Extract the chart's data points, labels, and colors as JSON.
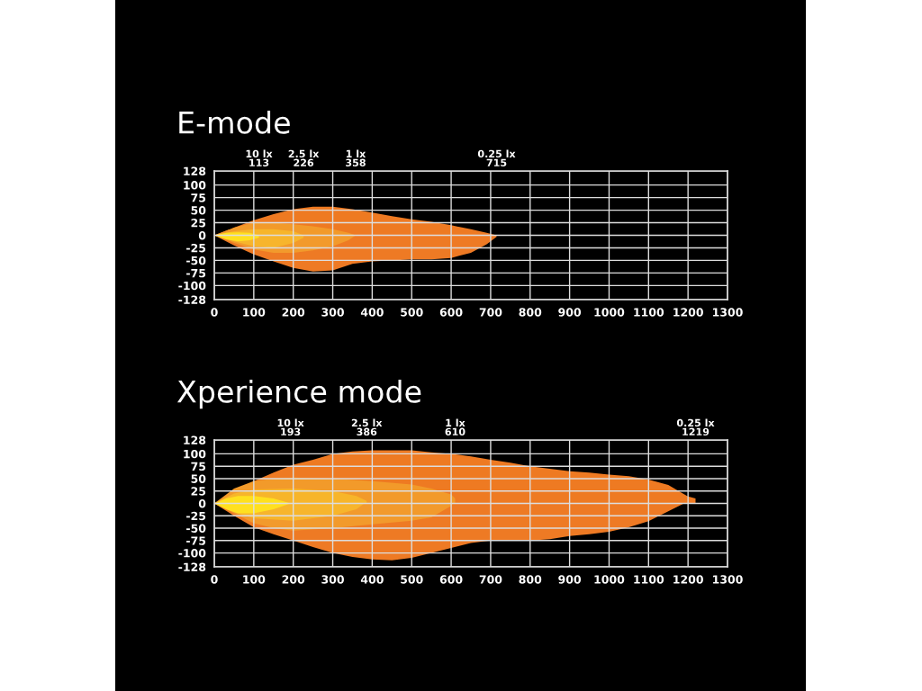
{
  "chart_data": [
    {
      "type": "area",
      "title": "E-mode",
      "xlim": [
        0,
        1300
      ],
      "xticks": [
        0,
        100,
        200,
        300,
        400,
        500,
        600,
        700,
        800,
        900,
        1000,
        1100,
        1200,
        1300
      ],
      "ylim": [
        -128,
        128
      ],
      "yticks": [
        128,
        100,
        75,
        50,
        25,
        0,
        -25,
        -50,
        -75,
        -100,
        -128
      ],
      "grid": true,
      "annotations": [
        "10 lx\n113",
        "2.5 lx\n226",
        "1 lx\n358",
        "0.25 lx\n715"
      ],
      "series": [
        {
          "color": "#ee7a22",
          "x": [
            0,
            50,
            100,
            150,
            200,
            250,
            300,
            350,
            400,
            450,
            500,
            550,
            600,
            650,
            690,
            715
          ],
          "values": [
            0,
            15,
            30,
            42,
            52,
            57,
            57,
            52,
            45,
            38,
            32,
            27,
            20,
            12,
            5,
            0
          ]
        },
        {
          "color": "#f29a2a",
          "x": [
            0,
            50,
            100,
            150,
            200,
            250,
            300,
            340,
            358
          ],
          "values": [
            0,
            15,
            25,
            25,
            22,
            18,
            12,
            5,
            0
          ]
        },
        {
          "color": "#f7b52a",
          "x": [
            0,
            50,
            100,
            150,
            200,
            226
          ],
          "values": [
            0,
            8,
            12,
            12,
            8,
            0
          ]
        },
        {
          "color": "#ffe01e",
          "x": [
            0,
            30,
            60,
            90,
            113
          ],
          "values": [
            0,
            5,
            6,
            5,
            0
          ]
        },
        {
          "color": "#ee7a24",
          "x": [
            0,
            50,
            100,
            150,
            200,
            250,
            300,
            350,
            400,
            450,
            500,
            550,
            600,
            650,
            690,
            715
          ],
          "values": [
            0,
            -20,
            -38,
            -52,
            -65,
            -72,
            -70,
            -57,
            -52,
            -50,
            -48,
            -48,
            -45,
            -35,
            -18,
            -3
          ]
        },
        {
          "color": "#f29a2c",
          "x": [
            0,
            50,
            100,
            150,
            200,
            250,
            300,
            340,
            358
          ],
          "values": [
            0,
            -15,
            -28,
            -35,
            -35,
            -30,
            -22,
            -10,
            0
          ]
        },
        {
          "color": "#f7b52c",
          "x": [
            0,
            50,
            100,
            150,
            200,
            226
          ],
          "values": [
            0,
            -12,
            -22,
            -25,
            -15,
            -5
          ]
        },
        {
          "color": "#ffe020",
          "x": [
            0,
            30,
            60,
            90,
            113
          ],
          "values": [
            0,
            -8,
            -12,
            -10,
            -5
          ]
        }
      ]
    },
    {
      "type": "area",
      "title": "Xperience mode",
      "xlim": [
        0,
        1300
      ],
      "xticks": [
        0,
        100,
        200,
        300,
        400,
        500,
        600,
        700,
        800,
        900,
        1000,
        1100,
        1200,
        1300
      ],
      "ylim": [
        -128,
        128
      ],
      "yticks": [
        128,
        100,
        75,
        50,
        25,
        0,
        -25,
        -50,
        -75,
        -100,
        -128
      ],
      "grid": true,
      "annotations": [
        "10 lx\n193",
        "2.5 lx\n386",
        "1 lx\n610",
        "0.25 lx\n1219"
      ],
      "series": [
        {
          "color": "#ee7a22",
          "x": [
            0,
            50,
            100,
            150,
            200,
            250,
            300,
            350,
            400,
            450,
            500,
            550,
            600,
            650,
            700,
            750,
            800,
            850,
            900,
            950,
            1000,
            1050,
            1100,
            1150,
            1200,
            1219
          ],
          "values": [
            0,
            25,
            45,
            62,
            78,
            88,
            100,
            105,
            107,
            107,
            107,
            103,
            100,
            95,
            88,
            82,
            75,
            70,
            65,
            62,
            58,
            55,
            48,
            37,
            14,
            10
          ]
        },
        {
          "color": "#f29a2a",
          "x": [
            0,
            50,
            100,
            150,
            200,
            300,
            400,
            500,
            550,
            600,
            610
          ],
          "values": [
            0,
            30,
            45,
            50,
            52,
            50,
            45,
            38,
            30,
            18,
            10
          ]
        },
        {
          "color": "#f7b52a",
          "x": [
            0,
            50,
            100,
            200,
            300,
            360,
            386
          ],
          "values": [
            0,
            20,
            28,
            30,
            25,
            15,
            5
          ]
        },
        {
          "color": "#ffe01e",
          "x": [
            0,
            30,
            60,
            100,
            150,
            193
          ],
          "values": [
            0,
            10,
            15,
            15,
            10,
            0
          ]
        },
        {
          "color": "#ee7a24",
          "x": [
            0,
            50,
            100,
            150,
            200,
            250,
            300,
            350,
            400,
            450,
            500,
            550,
            600,
            650,
            700,
            750,
            800,
            850,
            900,
            950,
            1000,
            1050,
            1100,
            1150,
            1190
          ],
          "values": [
            0,
            -25,
            -48,
            -62,
            -75,
            -88,
            -100,
            -108,
            -113,
            -115,
            -110,
            -100,
            -90,
            -80,
            -75,
            -75,
            -75,
            -72,
            -66,
            -62,
            -57,
            -48,
            -36,
            -16,
            0
          ]
        },
        {
          "color": "#f29a2c",
          "x": [
            0,
            50,
            100,
            150,
            200,
            300,
            400,
            500,
            550,
            600,
            605
          ],
          "values": [
            0,
            -20,
            -40,
            -50,
            -55,
            -50,
            -42,
            -35,
            -28,
            -5,
            0
          ]
        },
        {
          "color": "#f7b52c",
          "x": [
            0,
            50,
            100,
            200,
            300,
            360,
            380
          ],
          "values": [
            0,
            -18,
            -30,
            -35,
            -25,
            -12,
            0
          ]
        },
        {
          "color": "#ffe020",
          "x": [
            0,
            30,
            60,
            100,
            150,
            193
          ],
          "values": [
            0,
            -12,
            -20,
            -20,
            -12,
            0
          ]
        }
      ]
    }
  ]
}
